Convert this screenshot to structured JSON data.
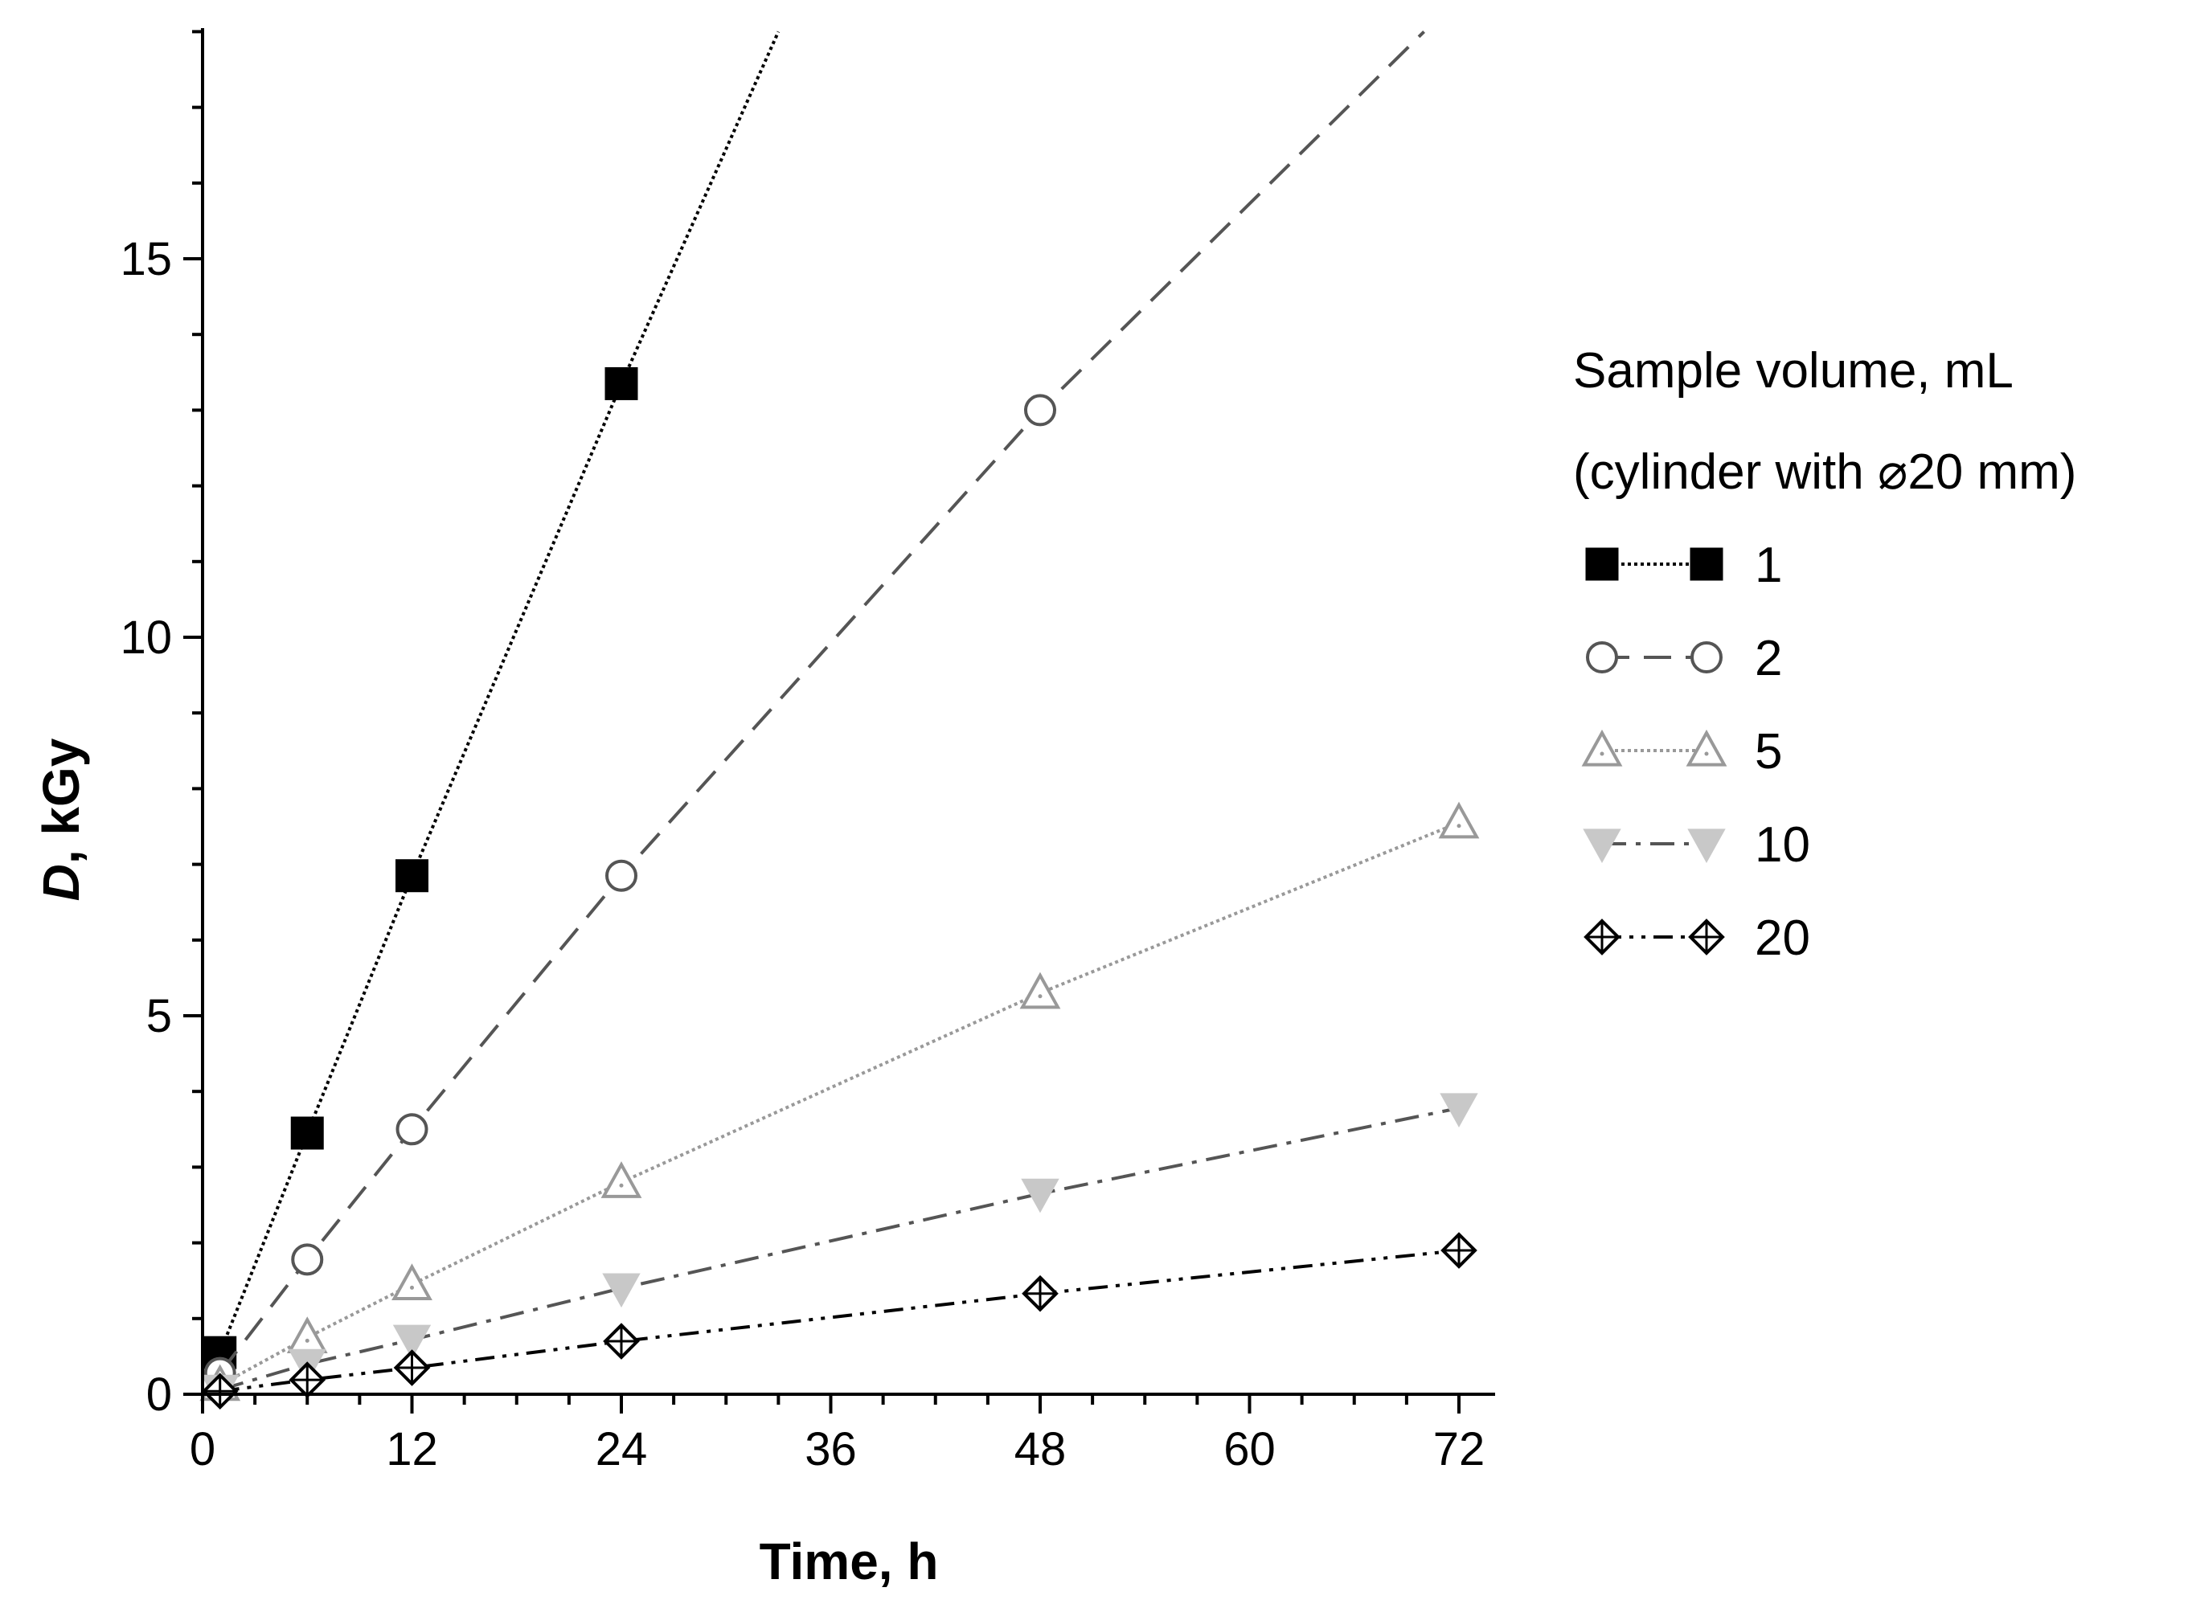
{
  "chart_data": {
    "type": "line",
    "xlabel": "Time, h",
    "ylabel": {
      "italic": "D",
      "rest": ", kGy"
    },
    "xlim": [
      0,
      74
    ],
    "ylim": [
      0,
      18
    ],
    "xticks": [
      0,
      12,
      24,
      36,
      48,
      60,
      72
    ],
    "xtick_labels": [
      "0",
      "12",
      "24",
      "36",
      "48",
      "60",
      "72"
    ],
    "yticks": [
      0,
      5,
      10,
      15
    ],
    "ytick_labels": [
      "0",
      "5",
      "10",
      "15"
    ],
    "legend": {
      "title_line1": "Sample volume, mL",
      "title_line2": "(cylinder with ⌀20 mm)",
      "position": "right"
    },
    "series": [
      {
        "name": "1",
        "marker": "square-filled",
        "dash": "dot",
        "color": "#000000",
        "points": [
          [
            1,
            0.55
          ],
          [
            6,
            3.45
          ],
          [
            12,
            6.85
          ],
          [
            24,
            13.35
          ]
        ],
        "line_end": [
          33,
          18
        ]
      },
      {
        "name": "2",
        "marker": "circle-open",
        "dash": "dash",
        "color": "#555555",
        "points": [
          [
            1,
            0.28
          ],
          [
            6,
            1.78
          ],
          [
            12,
            3.5
          ],
          [
            24,
            6.85
          ],
          [
            48,
            13.0
          ]
        ],
        "line_end": [
          70,
          18
        ]
      },
      {
        "name": "5",
        "marker": "triangle-up-open",
        "dash": "dot",
        "color": "#999999",
        "points": [
          [
            1,
            0.12
          ],
          [
            6,
            0.75
          ],
          [
            12,
            1.45
          ],
          [
            24,
            2.8
          ],
          [
            48,
            5.3
          ],
          [
            72,
            7.55
          ]
        ]
      },
      {
        "name": "10",
        "marker": "triangle-down-filled",
        "dash": "dashdot",
        "color": "#c8c8c8",
        "line_color": "#555555",
        "points": [
          [
            1,
            0.06
          ],
          [
            6,
            0.4
          ],
          [
            12,
            0.72
          ],
          [
            24,
            1.4
          ],
          [
            48,
            2.65
          ],
          [
            72,
            3.78
          ]
        ]
      },
      {
        "name": "20",
        "marker": "diamond-cross",
        "dash": "dashdotdot",
        "color": "#000000",
        "points": [
          [
            1,
            0.04
          ],
          [
            6,
            0.19
          ],
          [
            12,
            0.35
          ],
          [
            24,
            0.7
          ],
          [
            48,
            1.33
          ],
          [
            72,
            1.9
          ]
        ]
      }
    ]
  }
}
